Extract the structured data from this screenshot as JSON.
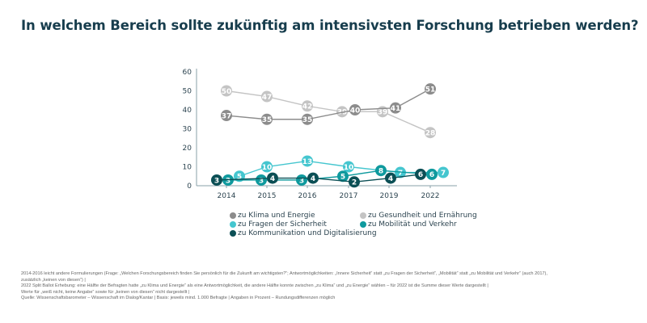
{
  "title": "In welchem Bereich sollte zukünftig am intensivsten Forschung betrieben werden?",
  "chart_data": {
    "type": "line",
    "title": "In welchem Bereich sollte zukünftig am intensivsten Forschung betrieben werden?",
    "categories": [
      "2014",
      "2015",
      "2016",
      "2017",
      "2019",
      "2022"
    ],
    "ylim": [
      0,
      60
    ],
    "yticks": [
      0,
      10,
      20,
      30,
      40,
      50,
      60
    ],
    "grid": false,
    "legend_position": "bottom",
    "series": [
      {
        "name": "zu Klima und Energie",
        "color": "#8c8c8c",
        "values": [
          37,
          35,
          35,
          40,
          41,
          51
        ]
      },
      {
        "name": "zu Gesundheit und Ernährung",
        "color": "#c4c4c4",
        "values": [
          50,
          47,
          42,
          39,
          39,
          28
        ]
      },
      {
        "name": "zu Fragen der Sicherheit",
        "color": "#45c6cf",
        "values": [
          5,
          10,
          13,
          10,
          7,
          7
        ]
      },
      {
        "name": "zu Mobilität und Verkehr",
        "color": "#0f9a9e",
        "values": [
          3,
          3,
          3,
          5,
          8,
          6
        ]
      },
      {
        "name": "zu Kommunikation und Digitalisierung",
        "color": "#0b4f55",
        "values": [
          3,
          4,
          4,
          2,
          4,
          6
        ]
      }
    ]
  },
  "notes": [
    "2014-2016 leicht andere Formulierungen (Frage: „Welchen Forschungsbereich finden Sie persönlich für die Zukunft am wichtigsten?“; Antwortmöglichkeiten: „Innere Sicherheit“ statt „zu Fragen der Sicherheit“, „Mobilität“ statt „zu Mobilität und Verkehr“ (auch 2017),",
    "zusätzlich „keinen von diesen“) |",
    "2022 Split Ballot Erhebung: eine Hälfte der Befragten hatte „zu Klima und Energie“ als eine Antwortmöglichkeit, die andere Hälfte konnte zwischen „zu Klima“ und „zu Energie“ wählen – für 2022 ist die Summe dieser Werte dargestellt |",
    "Werte für „weiß nicht, keine Angabe“ sowie für „keinen von diesen“ nicht dargestellt |",
    "Quelle: Wissenschaftsbarometer – Wissenschaft im Dialog/Kantar | Basis: jeweils mind. 1.000 Befragte | Angaben in Prozent – Rundungsdifferenzen möglich"
  ]
}
